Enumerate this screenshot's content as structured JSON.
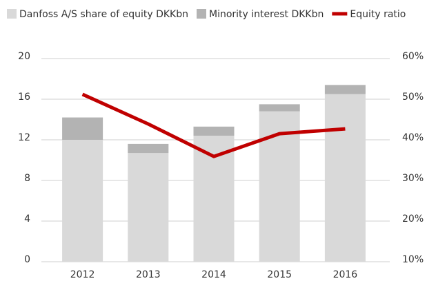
{
  "chart_data": {
    "type": "bar",
    "categories": [
      "2012",
      "2013",
      "2014",
      "2015",
      "2016"
    ],
    "series": [
      {
        "name": "Danfoss A/S share of equity DKKbn",
        "color": "#d9d9d9",
        "values": [
          12.0,
          10.7,
          12.4,
          14.8,
          16.5
        ]
      },
      {
        "name": "Minority interest DKKbn",
        "color": "#b3b3b3",
        "values": [
          2.2,
          0.9,
          0.9,
          0.7,
          0.9
        ]
      },
      {
        "name": "Equity ratio",
        "color": "#c00000",
        "type": "line",
        "axis": "y2",
        "values": [
          51.2,
          43.9,
          35.9,
          41.5,
          42.7
        ]
      }
    ],
    "stacked": true,
    "ylim": [
      0,
      20
    ],
    "yticks": [
      0,
      4,
      8,
      12,
      16,
      20
    ],
    "y2lim": [
      10,
      60
    ],
    "y2ticks": [
      {
        "value": 10,
        "label": "10%"
      },
      {
        "value": 20,
        "label": "20%"
      },
      {
        "value": 30,
        "label": "30%"
      },
      {
        "value": 40,
        "label": "40%"
      },
      {
        "value": 50,
        "label": "50%"
      },
      {
        "value": 60,
        "label": "60%"
      }
    ],
    "grid": true,
    "legend": "top"
  }
}
